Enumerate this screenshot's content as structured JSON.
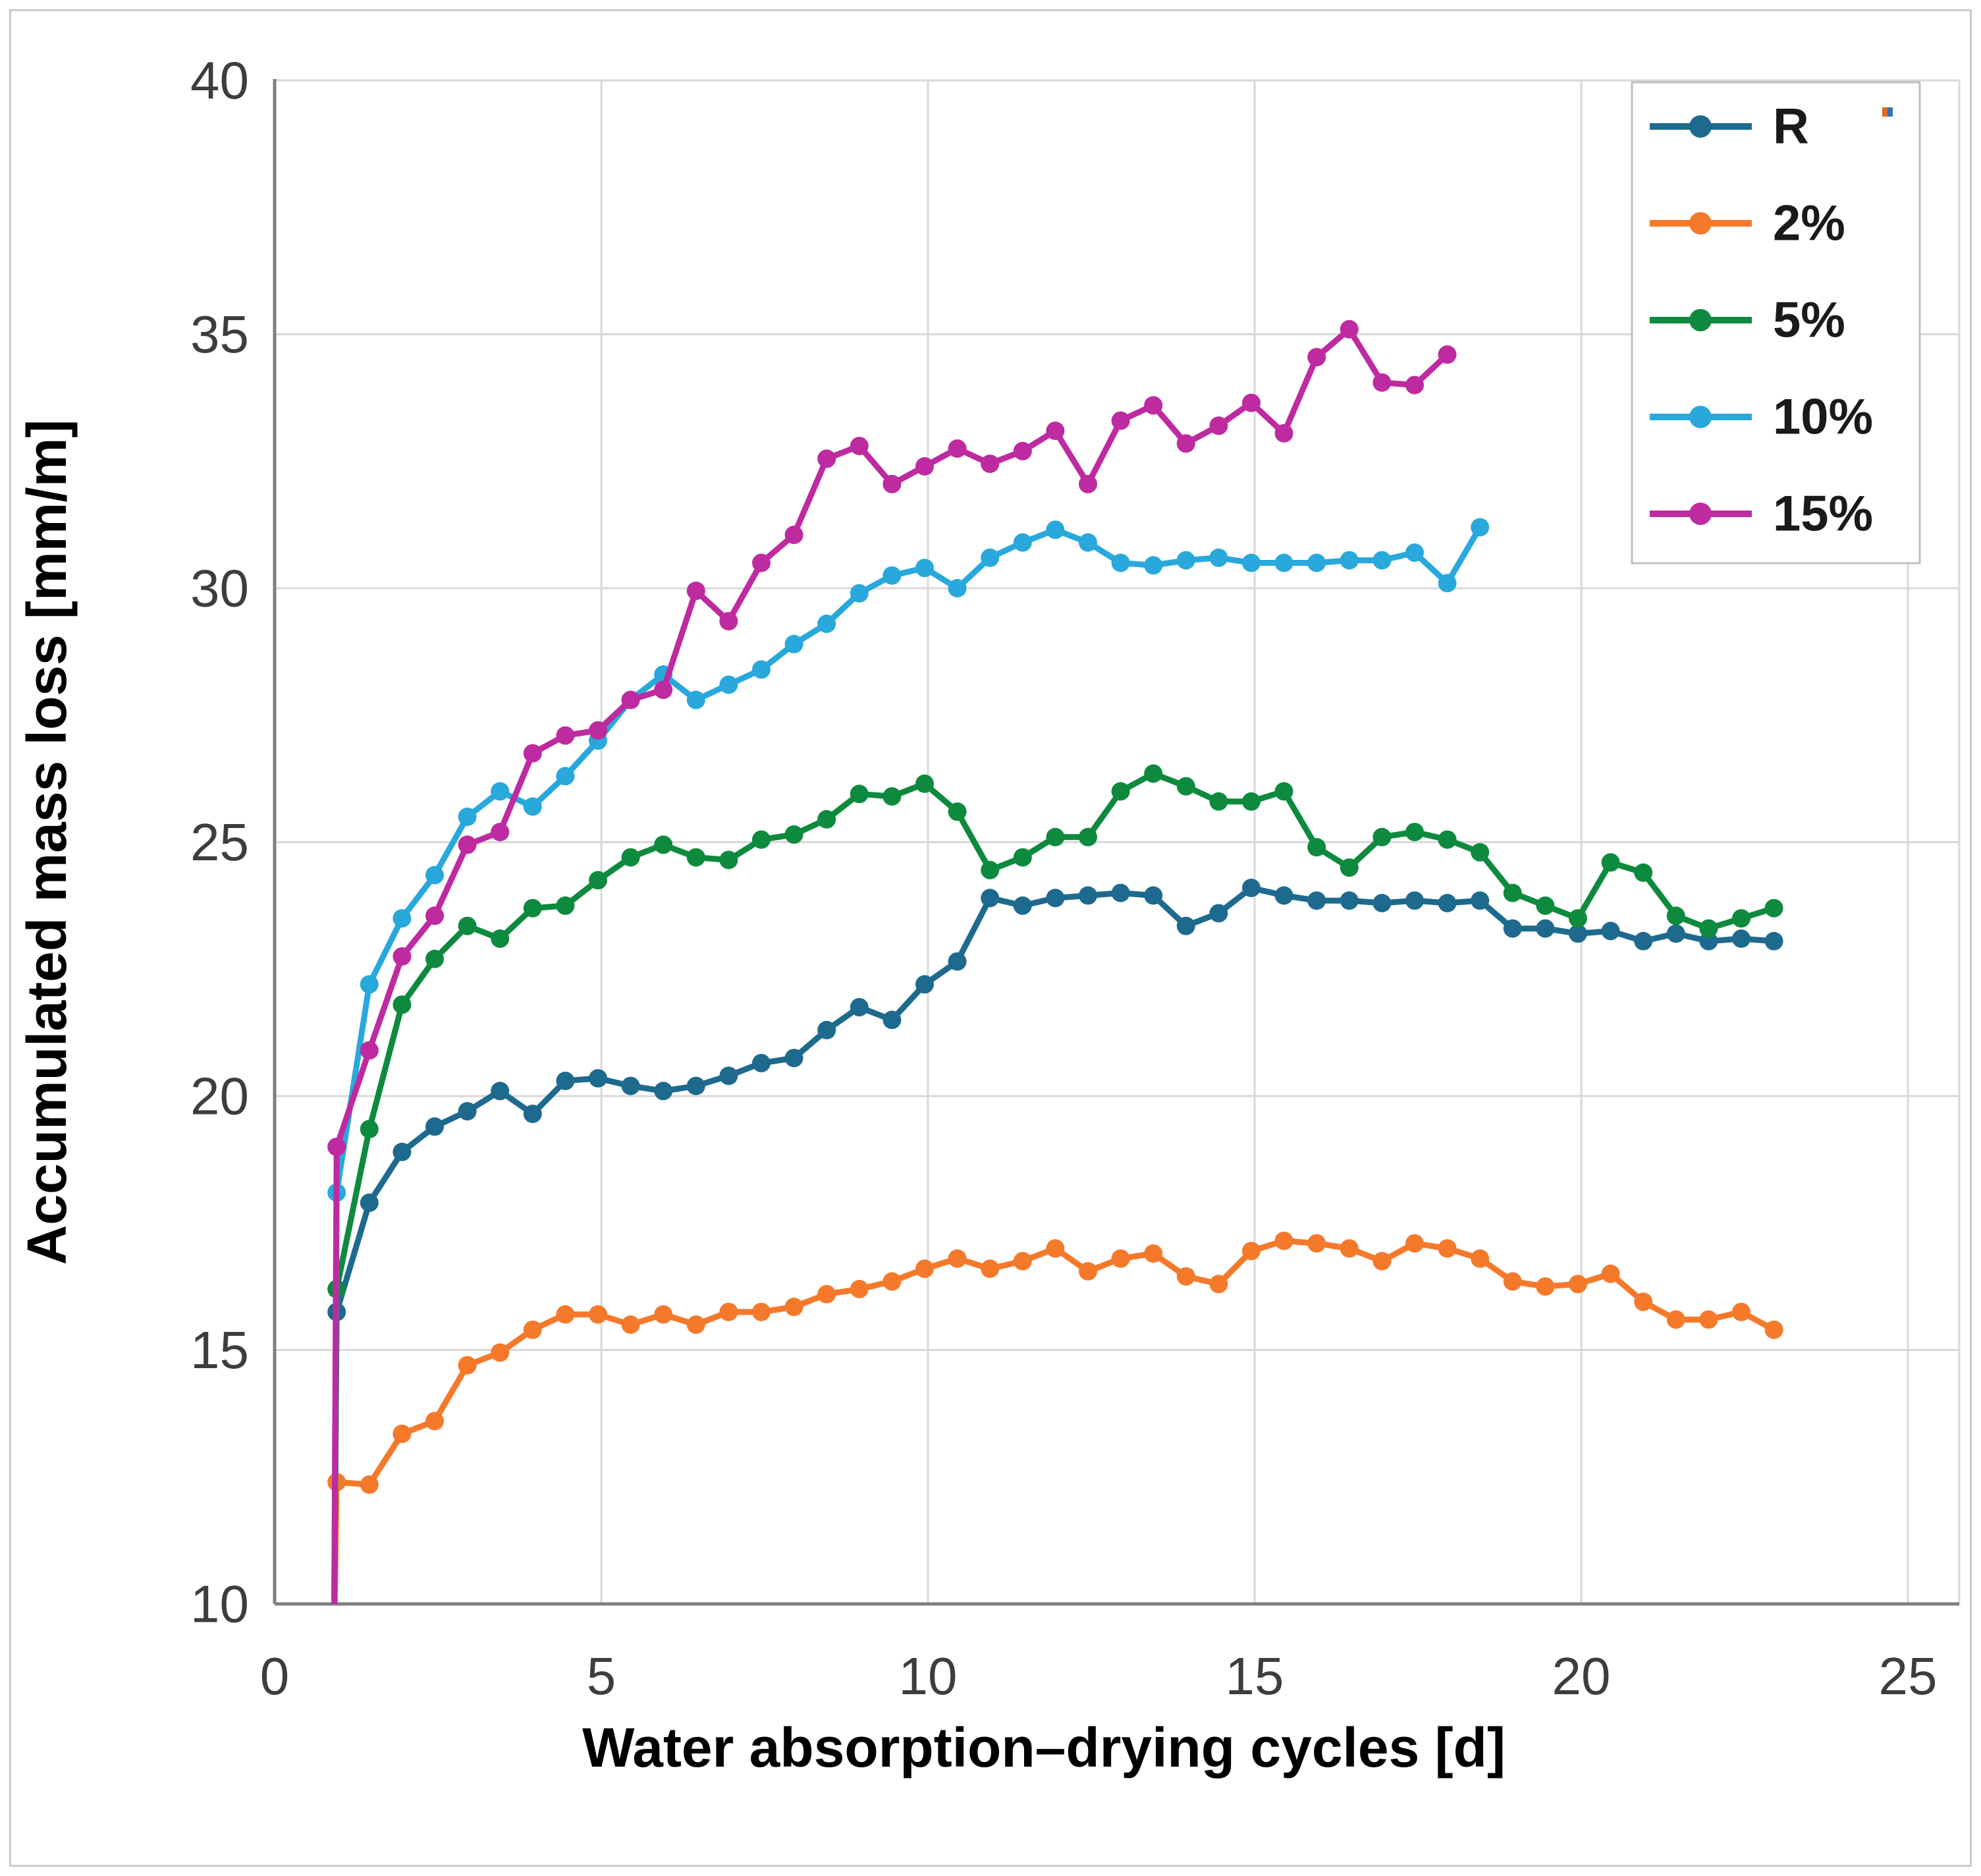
{
  "chart_data": {
    "type": "line",
    "title": "",
    "xlabel": "Water absorption–drying cycles [d]",
    "ylabel": "Accumulated mass loss [mm/m]",
    "xlim": [
      0,
      25
    ],
    "ylim": [
      10,
      40
    ],
    "xticks": [
      0,
      5,
      10,
      15,
      20,
      25
    ],
    "yticks": [
      10,
      15,
      20,
      25,
      30,
      35,
      40
    ],
    "grid": true,
    "legend_position": "top-right",
    "marker": "circle",
    "lead_in": {
      "x": 0.91,
      "y": 9.3
    },
    "series": [
      {
        "name": "R",
        "color": "#1E6A8E",
        "x": [
          0.95,
          1.45,
          1.95,
          2.45,
          2.95,
          3.45,
          3.95,
          4.45,
          4.95,
          5.45,
          5.95,
          6.45,
          6.95,
          7.45,
          7.95,
          8.45,
          8.95,
          9.45,
          9.95,
          10.45,
          10.95,
          11.45,
          11.95,
          12.45,
          12.95,
          13.45,
          13.95,
          14.45,
          14.95,
          15.45,
          15.95,
          16.45,
          16.95,
          17.45,
          17.95,
          18.45,
          18.95,
          19.45,
          19.95,
          20.45,
          20.95,
          21.45,
          21.95,
          22.45,
          22.95
        ],
        "y": [
          15.75,
          17.9,
          18.9,
          19.4,
          19.7,
          20.1,
          19.65,
          20.3,
          20.35,
          20.2,
          20.1,
          20.2,
          20.4,
          20.65,
          20.75,
          21.3,
          21.75,
          21.5,
          22.2,
          22.65,
          23.9,
          23.75,
          23.9,
          23.95,
          24.0,
          23.95,
          23.35,
          23.6,
          24.1,
          23.95,
          23.85,
          23.85,
          23.8,
          23.85,
          23.8,
          23.85,
          23.3,
          23.3,
          23.2,
          23.25,
          23.05,
          23.2,
          23.05,
          23.1,
          23.05
        ]
      },
      {
        "name": "2%",
        "color": "#F5792B",
        "x": [
          0.95,
          1.45,
          1.95,
          2.45,
          2.95,
          3.45,
          3.95,
          4.45,
          4.95,
          5.45,
          5.95,
          6.45,
          6.95,
          7.45,
          7.95,
          8.45,
          8.95,
          9.45,
          9.95,
          10.45,
          10.95,
          11.45,
          11.95,
          12.45,
          12.95,
          13.45,
          13.95,
          14.45,
          14.95,
          15.45,
          15.95,
          16.45,
          16.95,
          17.45,
          17.95,
          18.45,
          18.95,
          19.45,
          19.95,
          20.45,
          20.95,
          21.45,
          21.95,
          22.45,
          22.95
        ],
        "y": [
          12.4,
          12.35,
          13.35,
          13.6,
          14.7,
          14.95,
          15.4,
          15.7,
          15.7,
          15.5,
          15.7,
          15.5,
          15.75,
          15.75,
          15.85,
          16.1,
          16.2,
          16.35,
          16.6,
          16.8,
          16.6,
          16.75,
          17.0,
          16.55,
          16.8,
          16.9,
          16.45,
          16.3,
          16.95,
          17.15,
          17.1,
          17.0,
          16.75,
          17.1,
          17.0,
          16.8,
          16.35,
          16.25,
          16.3,
          16.5,
          15.95,
          15.6,
          15.6,
          15.75,
          15.4
        ]
      },
      {
        "name": "5%",
        "color": "#0E8A3E",
        "x": [
          0.95,
          1.45,
          1.95,
          2.45,
          2.95,
          3.45,
          3.95,
          4.45,
          4.95,
          5.45,
          5.95,
          6.45,
          6.95,
          7.45,
          7.95,
          8.45,
          8.95,
          9.45,
          9.95,
          10.45,
          10.95,
          11.45,
          11.95,
          12.45,
          12.95,
          13.45,
          13.95,
          14.45,
          14.95,
          15.45,
          15.95,
          16.45,
          16.95,
          17.45,
          17.95,
          18.45,
          18.95,
          19.45,
          19.95,
          20.45,
          20.95,
          21.45,
          21.95,
          22.45,
          22.95
        ],
        "y": [
          16.2,
          19.35,
          21.8,
          22.7,
          23.35,
          23.1,
          23.7,
          23.75,
          24.25,
          24.7,
          24.95,
          24.7,
          24.65,
          25.05,
          25.15,
          25.45,
          25.95,
          25.9,
          26.15,
          25.6,
          24.45,
          24.7,
          25.1,
          25.1,
          26.0,
          26.35,
          26.1,
          25.8,
          25.8,
          26.0,
          24.9,
          24.5,
          25.1,
          25.2,
          25.05,
          24.8,
          24.0,
          23.75,
          23.5,
          24.6,
          24.4,
          23.55,
          23.3,
          23.5,
          23.7
        ]
      },
      {
        "name": "10%",
        "color": "#29A8DC",
        "x": [
          0.95,
          1.45,
          1.95,
          2.45,
          2.95,
          3.45,
          3.95,
          4.45,
          4.95,
          5.45,
          5.95,
          6.45,
          6.95,
          7.45,
          7.95,
          8.45,
          8.95,
          9.45,
          9.95,
          10.45,
          10.95,
          11.45,
          11.95,
          12.45,
          12.95,
          13.45,
          13.95,
          14.45,
          14.95,
          15.45,
          15.95,
          16.45,
          16.95,
          17.45,
          17.95,
          18.45
        ],
        "y": [
          18.1,
          22.2,
          23.5,
          24.35,
          25.5,
          26.0,
          25.7,
          26.3,
          27.0,
          27.8,
          28.3,
          27.8,
          28.1,
          28.4,
          28.9,
          29.3,
          29.9,
          30.25,
          30.4,
          30.0,
          30.6,
          30.9,
          31.15,
          30.9,
          30.5,
          30.45,
          30.55,
          30.6,
          30.5,
          30.5,
          30.5,
          30.55,
          30.55,
          30.7,
          30.1,
          31.2
        ]
      },
      {
        "name": "15%",
        "color": "#BE2AA0",
        "x": [
          0.95,
          1.45,
          1.95,
          2.45,
          2.95,
          3.45,
          3.95,
          4.45,
          4.95,
          5.45,
          5.95,
          6.45,
          6.95,
          7.45,
          7.95,
          8.45,
          8.95,
          9.45,
          9.95,
          10.45,
          10.95,
          11.45,
          11.95,
          12.45,
          12.95,
          13.45,
          13.95,
          14.45,
          14.95,
          15.45,
          15.95,
          16.45,
          16.95,
          17.45,
          17.95
        ],
        "y": [
          19.0,
          20.9,
          22.75,
          23.55,
          24.95,
          25.2,
          26.75,
          27.1,
          27.2,
          27.8,
          28.0,
          29.95,
          29.35,
          30.5,
          31.05,
          32.55,
          32.8,
          32.05,
          32.4,
          32.75,
          32.45,
          32.7,
          33.1,
          32.05,
          33.3,
          33.6,
          32.85,
          33.2,
          33.65,
          33.05,
          34.55,
          35.1,
          34.05,
          34.0,
          34.6
        ]
      }
    ],
    "artifact_dot": {
      "colors": [
        "#E06A1F",
        "#2E75B6"
      ]
    }
  },
  "style": {
    "grid_color": "#d8d8d8",
    "axis_color": "#7f7f7f",
    "tick_text_color": "#3d3d3d",
    "title_text_color": "#000000",
    "legend_border_color": "#bfbfbf"
  }
}
